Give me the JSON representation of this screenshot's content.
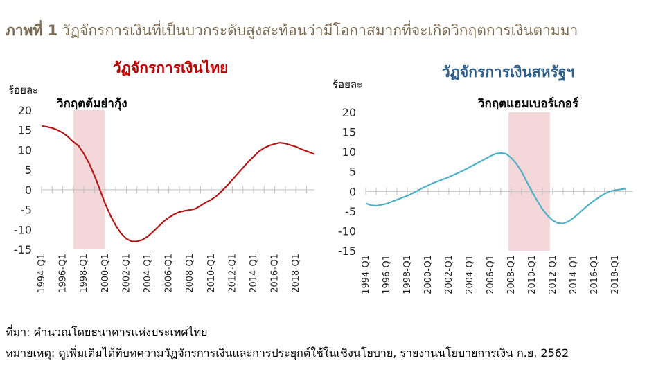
{
  "figure_title": {
    "label": "ภาพที่ 1",
    "text": "วัฏจักรการเงินที่เป็นบวกระดับสูงสะท้อนว่ามีโอกาสมากที่จะเกิดวิกฤตการเงินตามมา"
  },
  "footer": {
    "source": "ที่มา: คำนวณโดยธนาคารแห่งประเทศไทย",
    "note": "หมายเหตุ: ดูเพิ่มเติมได้ที่บทความวัฏจักรการเงินและการประยุกต์ใช้ในเชิงนโยบาย, รายงานนโยบายการเงิน ก.ย. 2562"
  },
  "colors": {
    "title": "#7a6a52",
    "thai_title": "#c00000",
    "thai_line": "#b01818",
    "us_title": "#2e5f8a",
    "us_line": "#4fb0c6",
    "crisis_band": "#f3d7d9"
  },
  "chart_data": [
    {
      "type": "line",
      "title": "วัฏจักรการเงินไทย",
      "ylabel": "ร้อยละ",
      "ylim": [
        -15,
        20
      ],
      "yticks": [
        20,
        15,
        10,
        5,
        0,
        -5,
        -10,
        -15
      ],
      "xlim": [
        1994.0,
        2019.75
      ],
      "xticks": [
        "1994-Q1",
        "1996-Q1",
        "1998-Q1",
        "2000-Q1",
        "2002-Q1",
        "2004-Q1",
        "2006-Q1",
        "2008-Q1",
        "2010-Q1",
        "2012-Q1",
        "2014-Q1",
        "2016-Q1",
        "2018-Q1"
      ],
      "annotation": {
        "text": "วิกฤตต้มยำกุ้ง",
        "x_start": 1997.0,
        "x_end": 2000.0
      },
      "series": [
        {
          "x": [
            1994.0,
            1994.5,
            1995.0,
            1995.5,
            1996.0,
            1996.5,
            1997.0,
            1997.5,
            1998.0,
            1998.5,
            1999.0,
            1999.5,
            2000.0,
            2000.5,
            2001.0,
            2001.5,
            2002.0,
            2002.5,
            2003.0,
            2003.5,
            2004.0,
            2004.5,
            2005.0,
            2005.5,
            2006.0,
            2006.5,
            2007.0,
            2007.5,
            2008.0,
            2008.5,
            2009.0,
            2009.5,
            2010.0,
            2010.5,
            2011.0,
            2011.5,
            2012.0,
            2012.5,
            2013.0,
            2013.5,
            2014.0,
            2014.5,
            2015.0,
            2015.5,
            2016.0,
            2016.5,
            2017.0,
            2017.5,
            2018.0,
            2018.5,
            2019.0,
            2019.5,
            2019.75
          ],
          "values": [
            16.0,
            15.8,
            15.5,
            15.0,
            14.3,
            13.3,
            12.0,
            11.0,
            9.0,
            6.5,
            3.5,
            0.0,
            -3.5,
            -6.5,
            -9.0,
            -11.0,
            -12.3,
            -13.0,
            -13.0,
            -12.6,
            -11.8,
            -10.6,
            -9.3,
            -8.0,
            -7.0,
            -6.2,
            -5.6,
            -5.3,
            -5.1,
            -4.8,
            -4.0,
            -3.2,
            -2.5,
            -1.6,
            -0.3,
            1.0,
            2.5,
            4.0,
            5.5,
            7.0,
            8.3,
            9.6,
            10.5,
            11.1,
            11.5,
            11.8,
            11.6,
            11.2,
            10.8,
            10.2,
            9.7,
            9.2,
            8.9
          ]
        }
      ]
    },
    {
      "type": "line",
      "title": "วัฏจักรการเงินสหรัฐฯ",
      "ylabel": "ร้อยละ",
      "ylim": [
        -15,
        20
      ],
      "yticks": [
        20,
        15,
        10,
        5,
        0,
        -5,
        -10,
        -15
      ],
      "xlim": [
        1994.0,
        2019.75
      ],
      "xticks": [
        "1994-Q1",
        "1996-Q1",
        "1998-Q1",
        "2000-Q1",
        "2002-Q1",
        "2004-Q1",
        "2006-Q1",
        "2008-Q1",
        "2010-Q1",
        "2012-Q1",
        "2014-Q1",
        "2016-Q1",
        "2018-Q1"
      ],
      "annotation": {
        "text": "วิกฤตแฮมเบอร์เกอร์",
        "x_start": 2007.75,
        "x_end": 2011.75
      },
      "series": [
        {
          "x": [
            1994.0,
            1994.5,
            1995.0,
            1995.5,
            1996.0,
            1996.5,
            1997.0,
            1997.5,
            1998.0,
            1998.5,
            1999.0,
            1999.5,
            2000.0,
            2000.5,
            2001.0,
            2001.5,
            2002.0,
            2002.5,
            2003.0,
            2003.5,
            2004.0,
            2004.5,
            2005.0,
            2005.5,
            2006.0,
            2006.5,
            2007.0,
            2007.5,
            2008.0,
            2008.5,
            2009.0,
            2009.5,
            2010.0,
            2010.5,
            2011.0,
            2011.5,
            2012.0,
            2012.5,
            2013.0,
            2013.5,
            2014.0,
            2014.5,
            2015.0,
            2015.5,
            2016.0,
            2016.5,
            2017.0,
            2017.5,
            2018.0,
            2018.5,
            2019.0
          ],
          "values": [
            -3.0,
            -3.5,
            -3.6,
            -3.4,
            -3.1,
            -2.6,
            -2.1,
            -1.6,
            -1.1,
            -0.5,
            0.2,
            0.9,
            1.5,
            2.1,
            2.6,
            3.1,
            3.6,
            4.2,
            4.8,
            5.4,
            6.1,
            6.8,
            7.5,
            8.2,
            8.9,
            9.5,
            9.7,
            9.5,
            8.5,
            7.0,
            5.0,
            2.5,
            0.0,
            -2.3,
            -4.4,
            -6.1,
            -7.3,
            -8.0,
            -8.1,
            -7.6,
            -6.7,
            -5.6,
            -4.4,
            -3.3,
            -2.3,
            -1.4,
            -0.6,
            0.0,
            0.3,
            0.5,
            0.7
          ]
        }
      ]
    }
  ]
}
